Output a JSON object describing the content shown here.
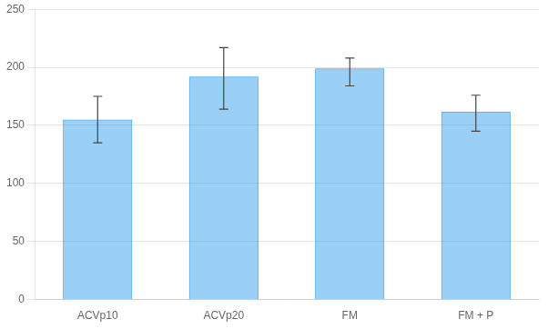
{
  "chart_data": {
    "type": "bar",
    "categories": [
      "ACVp10",
      "ACVp20",
      "FM",
      "FM + P"
    ],
    "values": [
      155,
      192,
      199,
      162
    ],
    "error_lower": [
      20,
      28,
      15,
      17
    ],
    "error_upper": [
      20,
      25,
      9,
      14
    ],
    "ylim": [
      0,
      250
    ],
    "yticks": [
      0,
      50,
      100,
      150,
      200,
      250
    ],
    "grid": true
  }
}
